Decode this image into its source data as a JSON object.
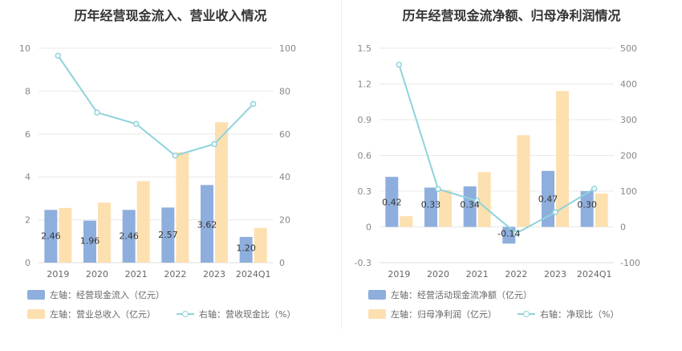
{
  "charts": [
    {
      "title": "历年经营现金流入、营业收入情况",
      "legend": [
        {
          "kind": "bar",
          "color": "#8eaedd",
          "label": "左轴：经营现金流入（亿元）"
        },
        {
          "kind": "bar",
          "color": "#fde0b0",
          "label": "左轴：营业总收入（亿元）"
        },
        {
          "kind": "line",
          "color": "#8fd3dc",
          "label": "右轴：营收现金比（%）"
        }
      ]
    },
    {
      "title": "历年经营现金流净额、归母净利润情况",
      "legend": [
        {
          "kind": "bar",
          "color": "#8eaedd",
          "label": "左轴：经营活动现金流净额（亿元）"
        },
        {
          "kind": "bar",
          "color": "#fde0b0",
          "label": "左轴：归母净利润（亿元）"
        },
        {
          "kind": "line",
          "color": "#8fd3dc",
          "label": "右轴：净现比（%）"
        }
      ]
    }
  ],
  "chart_data": [
    {
      "type": "bar",
      "title": "历年经营现金流入、营业收入情况",
      "categories": [
        "2019",
        "2020",
        "2021",
        "2022",
        "2023",
        "2024Q1"
      ],
      "series": [
        {
          "name": "左轴：经营现金流入（亿元）",
          "axis": "left",
          "type": "bar",
          "color": "#8eaedd",
          "values": [
            2.46,
            1.96,
            2.46,
            2.57,
            3.62,
            1.2
          ]
        },
        {
          "name": "左轴：营业总收入（亿元）",
          "axis": "left",
          "type": "bar",
          "color": "#fde0b0",
          "values": [
            2.55,
            2.8,
            3.8,
            5.15,
            6.55,
            1.62
          ]
        },
        {
          "name": "右轴：营收现金比（%）",
          "axis": "right",
          "type": "line",
          "color": "#8fd3dc",
          "values": [
            96.5,
            70,
            64.7,
            49.9,
            55.3,
            74
          ]
        }
      ],
      "left_axis": {
        "min": 0,
        "max": 10,
        "ticks": [
          0,
          2,
          4,
          6,
          8,
          10
        ],
        "tick_labels": [
          "0",
          "2",
          "4",
          "6",
          "8",
          "10"
        ]
      },
      "right_axis": {
        "min": 0,
        "max": 100,
        "ticks": [
          0,
          20,
          40,
          60,
          80,
          100
        ],
        "tick_labels": [
          "0",
          "20",
          "40",
          "60",
          "80",
          "100"
        ]
      },
      "data_labels": [
        "2.46",
        "1.96",
        "2.46",
        "2.57",
        "3.62",
        "1.20"
      ],
      "grid": true,
      "legend_position": "bottom-left"
    },
    {
      "type": "bar",
      "title": "历年经营现金流净额、归母净利润情况",
      "categories": [
        "2019",
        "2020",
        "2021",
        "2022",
        "2023",
        "2024Q1"
      ],
      "series": [
        {
          "name": "左轴：经营活动现金流净额（亿元）",
          "axis": "left",
          "type": "bar",
          "color": "#8eaedd",
          "values": [
            0.42,
            0.33,
            0.34,
            -0.14,
            0.47,
            0.3
          ]
        },
        {
          "name": "左轴：归母净利润（亿元）",
          "axis": "left",
          "type": "bar",
          "color": "#fde0b0",
          "values": [
            0.09,
            0.31,
            0.46,
            0.77,
            1.14,
            0.28
          ]
        },
        {
          "name": "右轴：净现比（%）",
          "axis": "right",
          "type": "line",
          "color": "#8fd3dc",
          "values": [
            454,
            106,
            73,
            -18,
            41,
            107
          ]
        }
      ],
      "left_axis": {
        "min": -0.3,
        "max": 1.5,
        "ticks": [
          -0.3,
          0,
          0.3,
          0.6,
          0.9,
          1.2,
          1.5
        ],
        "tick_labels": [
          "-0.3",
          "0",
          "0.3",
          "0.6",
          "0.9",
          "1.2",
          "1.5"
        ]
      },
      "right_axis": {
        "min": -100,
        "max": 500,
        "ticks": [
          -100,
          0,
          100,
          200,
          300,
          400,
          500
        ],
        "tick_labels": [
          "-100",
          "0",
          "100",
          "200",
          "300",
          "400",
          "500"
        ]
      },
      "data_labels": [
        "0.42",
        "0.33",
        "0.34",
        "-0.14",
        "0.47",
        "0.30"
      ],
      "grid": true,
      "legend_position": "bottom-left"
    }
  ]
}
